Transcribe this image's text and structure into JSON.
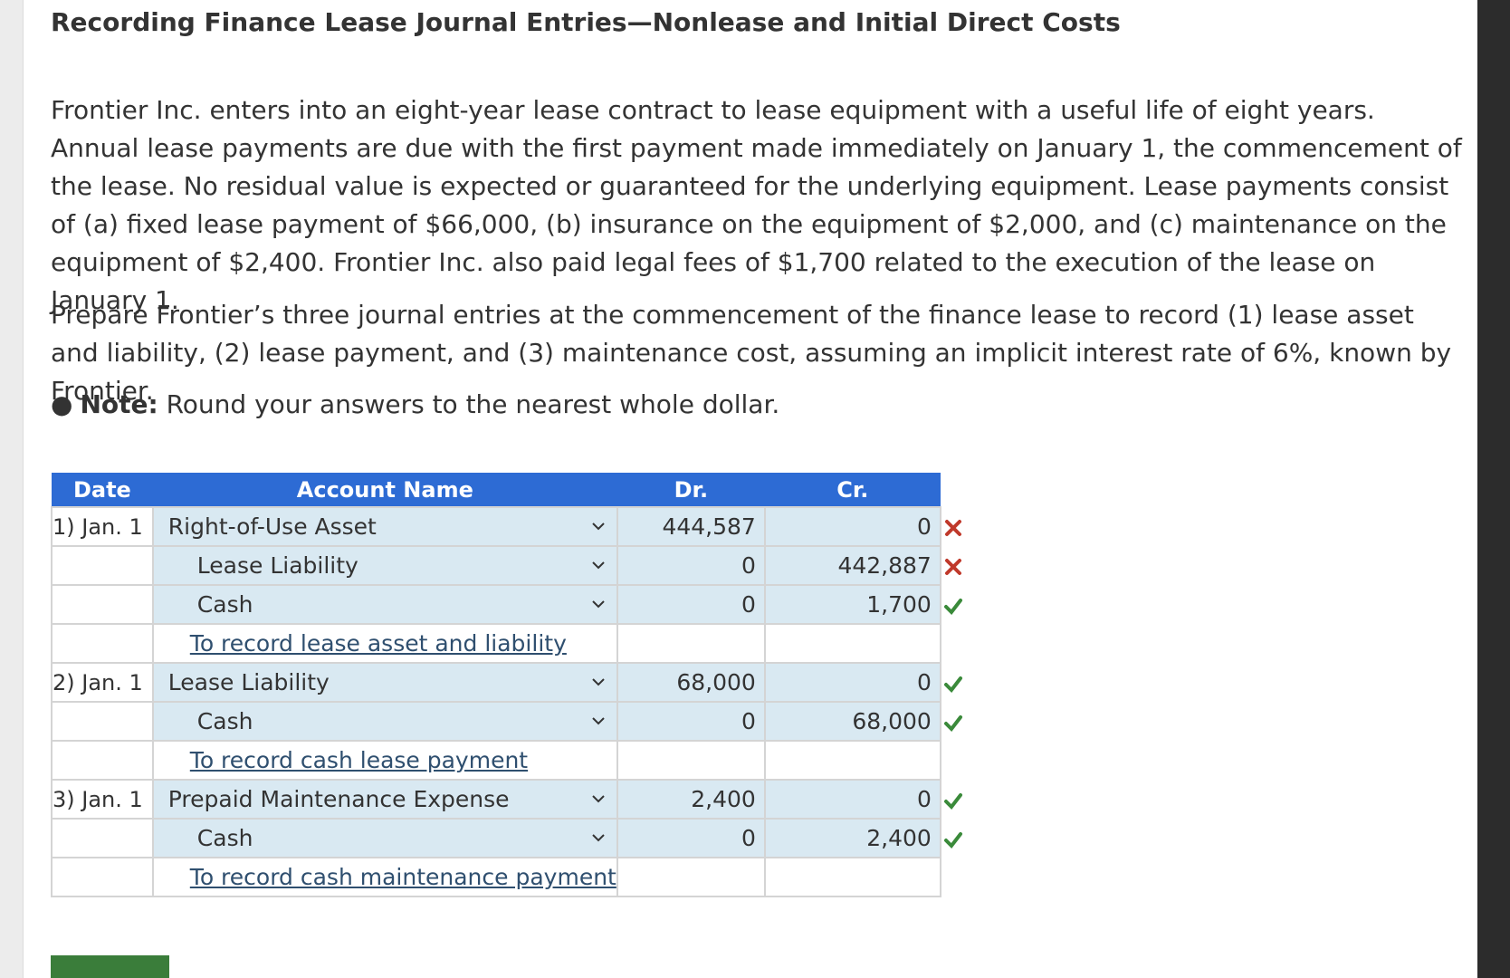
{
  "title": "Recording Finance Lease Journal Entries—Nonlease and Initial Direct Costs",
  "problem_text": "Frontier Inc. enters into an eight-year lease contract to lease equipment with a useful life of eight years. Annual lease payments are due with the first payment made immediately on January 1, the commencement of the lease. No residual value is expected or guaranteed for the underlying equipment. Lease payments consist of (a) fixed lease payment of $66,000, (b) insurance on the equipment of $2,000, and (c) maintenance on the equipment of $2,400. Frontier Inc. also paid legal fees of $1,700 related to the execution of the lease on January 1.",
  "instruction_text": "Prepare Frontier’s three journal entries at the commencement of the finance lease to record (1) lease asset and liability, (2) lease payment, and (3) maintenance cost, assuming an implicit interest rate of 6%, known by Frontier.",
  "note": {
    "label": "Note:",
    "text": "Round your answers to the nearest whole dollar."
  },
  "table": {
    "headers": {
      "date": "Date",
      "account": "Account Name",
      "dr": "Dr.",
      "cr": "Cr."
    },
    "entries": [
      {
        "date": "1) Jan. 1",
        "lines": [
          {
            "account": "Right-of-Use Asset",
            "dr": "444,587",
            "cr": "0",
            "mark": "x"
          },
          {
            "account": "Lease Liability",
            "dr": "0",
            "cr": "442,887",
            "mark": "x"
          },
          {
            "account": "Cash",
            "dr": "0",
            "cr": "1,700",
            "mark": "check"
          }
        ],
        "memo": "To record lease asset and liability"
      },
      {
        "date": "2) Jan. 1",
        "lines": [
          {
            "account": "Lease Liability",
            "dr": "68,000",
            "cr": "0",
            "mark": "check"
          },
          {
            "account": "Cash",
            "dr": "0",
            "cr": "68,000",
            "mark": "check"
          }
        ],
        "memo": "To record cash lease payment"
      },
      {
        "date": "3) Jan. 1",
        "lines": [
          {
            "account": "Prepaid Maintenance Expense",
            "dr": "2,400",
            "cr": "0",
            "mark": "check"
          },
          {
            "account": "Cash",
            "dr": "0",
            "cr": "2,400",
            "mark": "check"
          }
        ],
        "memo": "To record cash maintenance payment"
      }
    ]
  },
  "colors": {
    "header_bg": "#2d6bd4",
    "input_bg": "#d9e9f2",
    "correct": "#3a8a3a",
    "incorrect": "#c0392b",
    "button": "#3a7d3a"
  }
}
